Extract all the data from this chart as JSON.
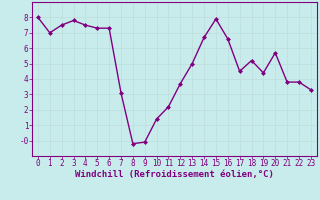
{
  "x": [
    0,
    1,
    2,
    3,
    4,
    5,
    6,
    7,
    8,
    9,
    10,
    11,
    12,
    13,
    14,
    15,
    16,
    17,
    18,
    19,
    20,
    21,
    22,
    23
  ],
  "y": [
    8.0,
    7.0,
    7.5,
    7.8,
    7.5,
    7.3,
    7.3,
    3.1,
    -0.2,
    -0.1,
    1.4,
    2.2,
    3.7,
    5.0,
    6.7,
    7.9,
    6.6,
    4.5,
    5.2,
    4.4,
    5.7,
    3.8,
    3.8,
    3.3
  ],
  "line_color": "#800080",
  "marker": "D",
  "markersize": 2.0,
  "linewidth": 1.0,
  "xlabel": "Windchill (Refroidissement éolien,°C)",
  "xlim": [
    -0.5,
    23.5
  ],
  "ylim": [
    -1.0,
    9.0
  ],
  "yticks": [
    0,
    1,
    2,
    3,
    4,
    5,
    6,
    7,
    8
  ],
  "ytick_labels": [
    "-0",
    "1",
    "2",
    "3",
    "4",
    "5",
    "6",
    "7",
    "8"
  ],
  "xticks": [
    0,
    1,
    2,
    3,
    4,
    5,
    6,
    7,
    8,
    9,
    10,
    11,
    12,
    13,
    14,
    15,
    16,
    17,
    18,
    19,
    20,
    21,
    22,
    23
  ],
  "bg_color": "#c8ecec",
  "grid_color": "#aad4d4",
  "line_border_color": "#800080",
  "tick_color": "#800080",
  "xlabel_fontsize": 6.5,
  "tick_fontsize": 5.5
}
